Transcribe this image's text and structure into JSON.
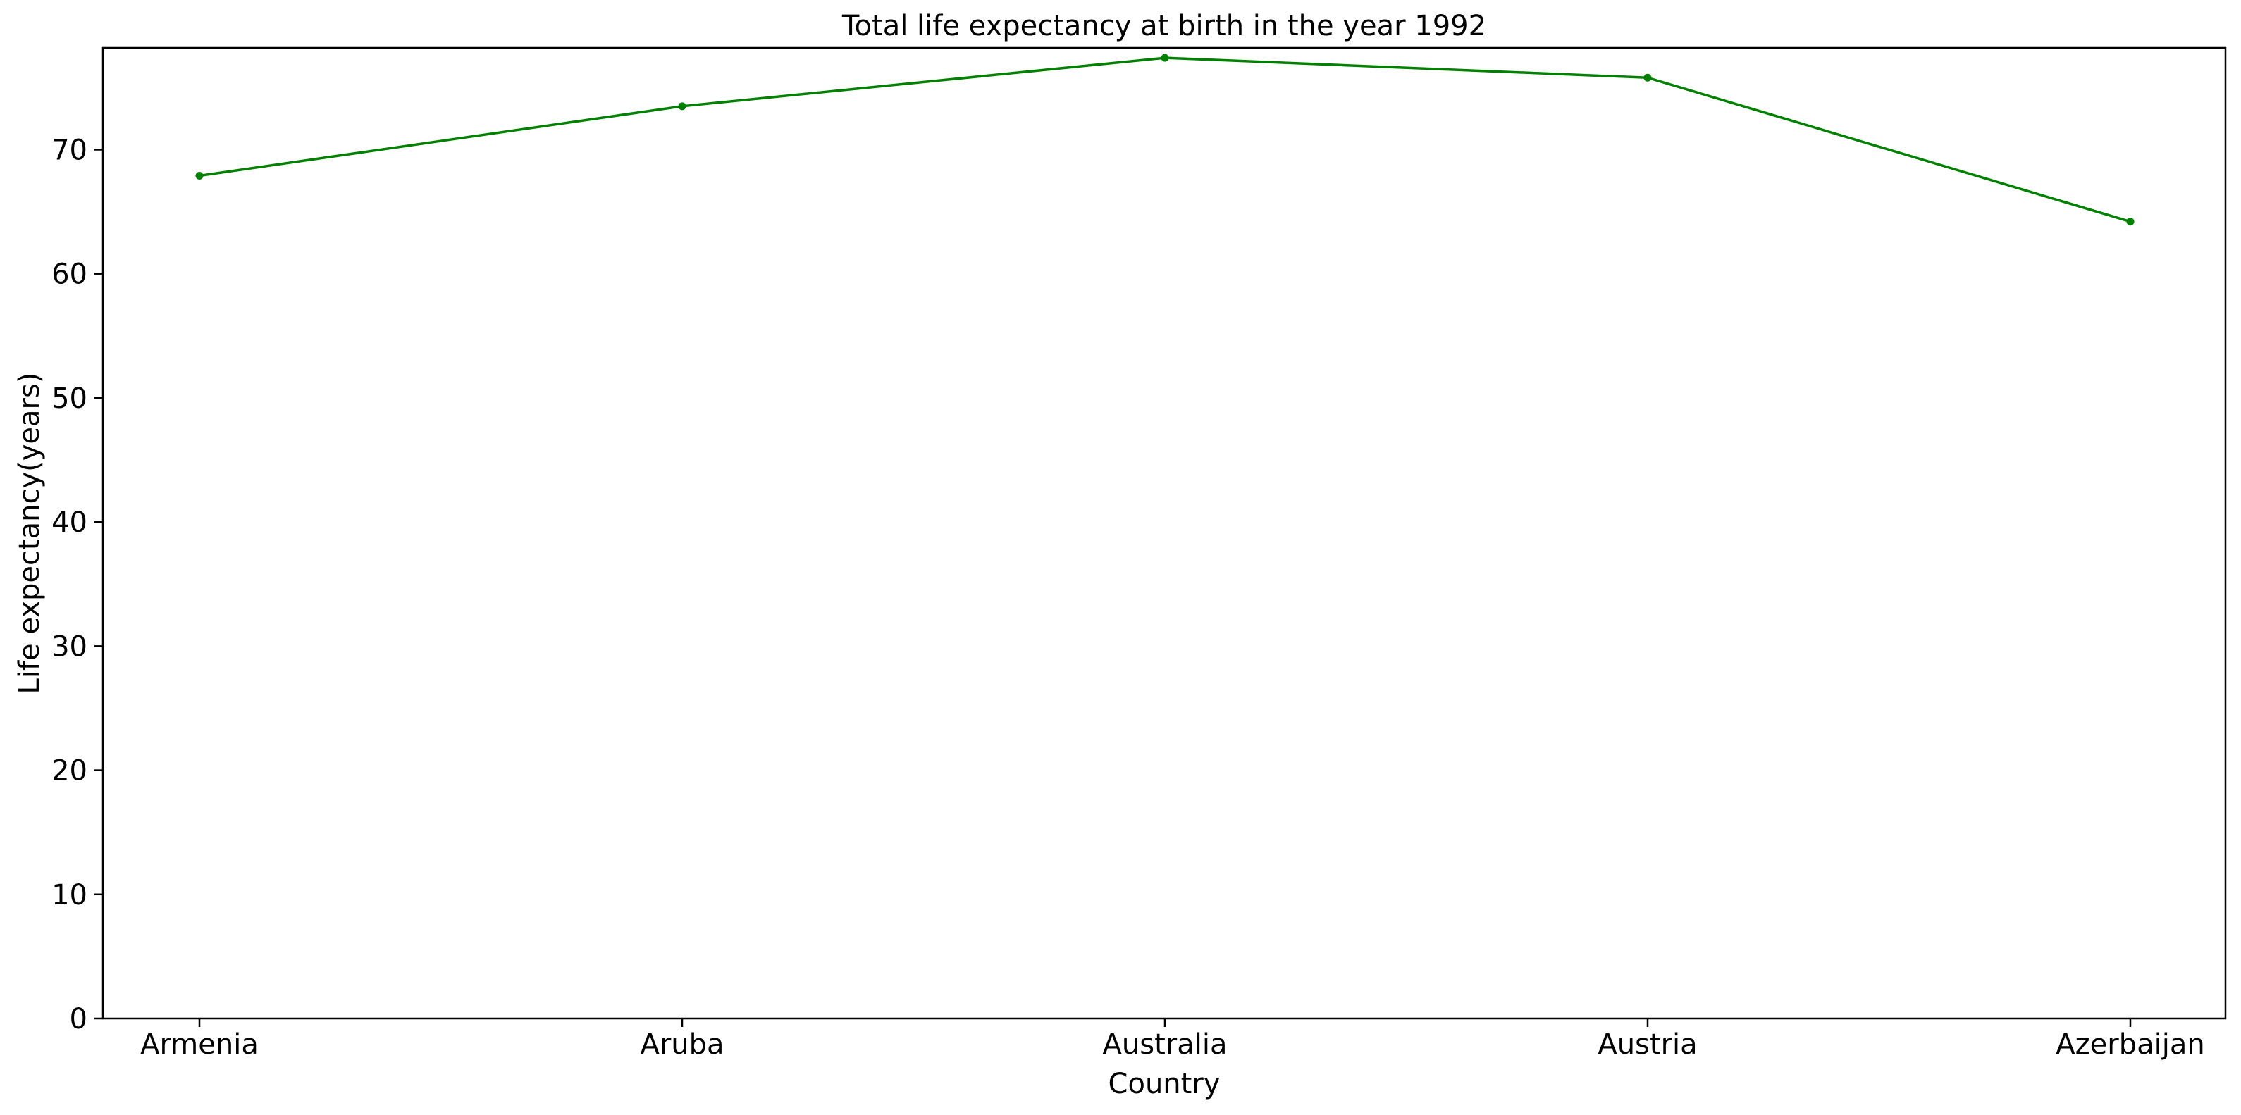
{
  "chart_data": {
    "type": "line",
    "title": "Total life expectancy at birth in the year 1992",
    "xlabel": "Country",
    "ylabel": "Life expectancy(years)",
    "categories": [
      "Armenia",
      "Aruba",
      "Australia",
      "Austria",
      "Azerbaijan"
    ],
    "series": [
      {
        "values": [
          67.9,
          73.5,
          77.4,
          75.8,
          64.2
        ],
        "color": "#008000",
        "marker": "dot"
      }
    ],
    "ylim": [
      0,
      78.2
    ],
    "yticks": [
      0,
      10,
      20,
      30,
      40,
      50,
      60,
      70
    ],
    "grid": false,
    "legend": "none"
  }
}
